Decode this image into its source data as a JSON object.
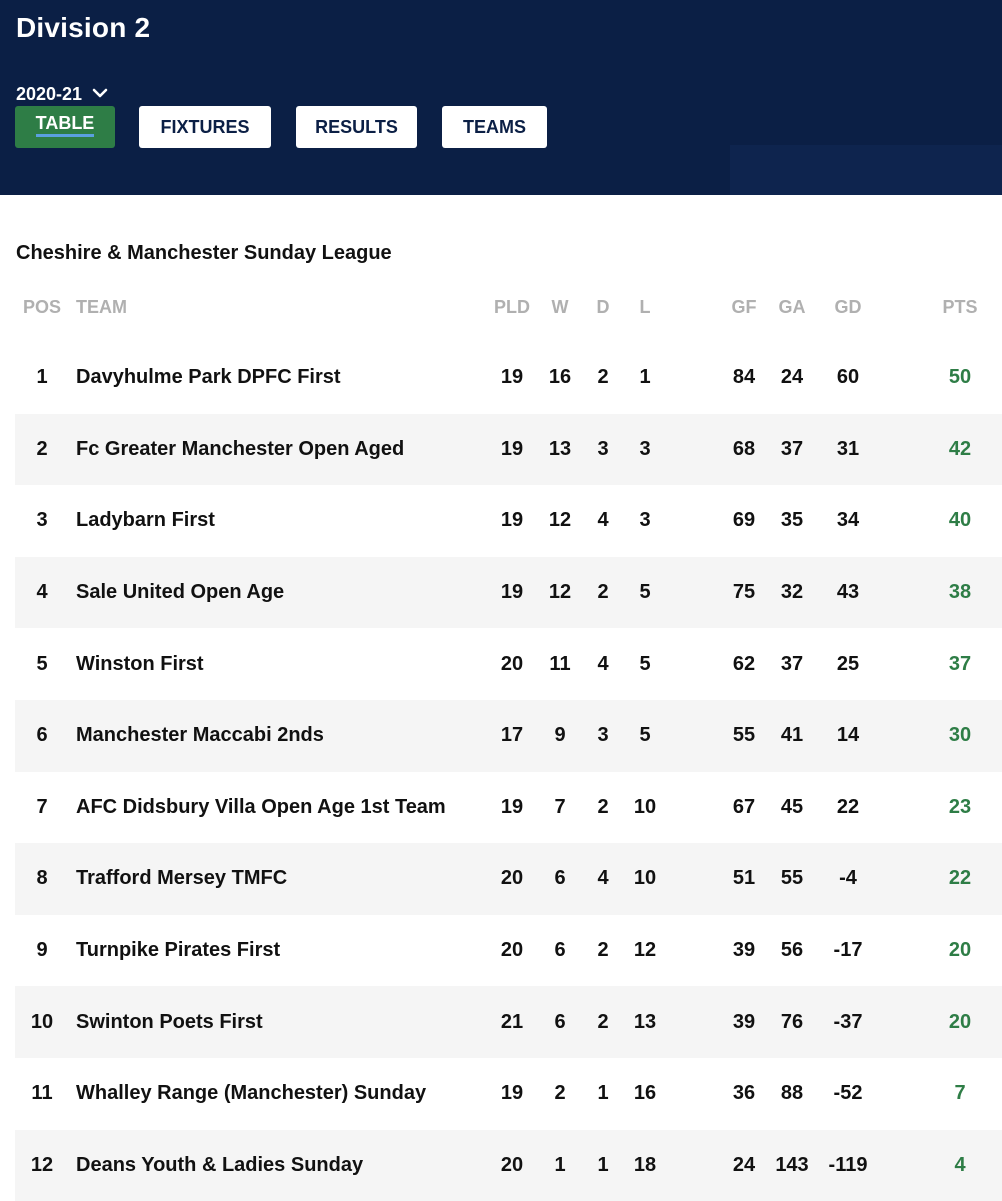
{
  "header": {
    "title": "Division 2",
    "season": "2020-21",
    "tabs": {
      "table": "TABLE",
      "fixtures": "FIXTURES",
      "results": "RESULTS",
      "teams": "TEAMS"
    }
  },
  "league": {
    "name": "Cheshire & Manchester Sunday League"
  },
  "colors": {
    "header_bg": "#0b1f45",
    "active_tab": "#2e7d46",
    "points": "#2e7d46",
    "column_header": "#b0b0b0"
  },
  "table": {
    "columns": {
      "pos": "POS",
      "team": "TEAM",
      "pld": "PLD",
      "w": "W",
      "d": "D",
      "l": "L",
      "gf": "GF",
      "ga": "GA",
      "gd": "GD",
      "pts": "PTS"
    },
    "rows": [
      {
        "pos": "1",
        "team": "Davyhulme Park DPFC First",
        "pld": "19",
        "w": "16",
        "d": "2",
        "l": "1",
        "gf": "84",
        "ga": "24",
        "gd": "60",
        "pts": "50"
      },
      {
        "pos": "2",
        "team": "Fc Greater Manchester Open Aged",
        "pld": "19",
        "w": "13",
        "d": "3",
        "l": "3",
        "gf": "68",
        "ga": "37",
        "gd": "31",
        "pts": "42"
      },
      {
        "pos": "3",
        "team": "Ladybarn First",
        "pld": "19",
        "w": "12",
        "d": "4",
        "l": "3",
        "gf": "69",
        "ga": "35",
        "gd": "34",
        "pts": "40"
      },
      {
        "pos": "4",
        "team": "Sale United Open Age",
        "pld": "19",
        "w": "12",
        "d": "2",
        "l": "5",
        "gf": "75",
        "ga": "32",
        "gd": "43",
        "pts": "38"
      },
      {
        "pos": "5",
        "team": "Winston First",
        "pld": "20",
        "w": "11",
        "d": "4",
        "l": "5",
        "gf": "62",
        "ga": "37",
        "gd": "25",
        "pts": "37"
      },
      {
        "pos": "6",
        "team": "Manchester Maccabi 2nds",
        "pld": "17",
        "w": "9",
        "d": "3",
        "l": "5",
        "gf": "55",
        "ga": "41",
        "gd": "14",
        "pts": "30"
      },
      {
        "pos": "7",
        "team": "AFC Didsbury Villa Open Age 1st Team",
        "pld": "19",
        "w": "7",
        "d": "2",
        "l": "10",
        "gf": "67",
        "ga": "45",
        "gd": "22",
        "pts": "23"
      },
      {
        "pos": "8",
        "team": "Trafford Mersey TMFC",
        "pld": "20",
        "w": "6",
        "d": "4",
        "l": "10",
        "gf": "51",
        "ga": "55",
        "gd": "-4",
        "pts": "22"
      },
      {
        "pos": "9",
        "team": "Turnpike Pirates First",
        "pld": "20",
        "w": "6",
        "d": "2",
        "l": "12",
        "gf": "39",
        "ga": "56",
        "gd": "-17",
        "pts": "20"
      },
      {
        "pos": "10",
        "team": "Swinton Poets First",
        "pld": "21",
        "w": "6",
        "d": "2",
        "l": "13",
        "gf": "39",
        "ga": "76",
        "gd": "-37",
        "pts": "20"
      },
      {
        "pos": "11",
        "team": "Whalley Range (Manchester) Sunday",
        "pld": "19",
        "w": "2",
        "d": "1",
        "l": "16",
        "gf": "36",
        "ga": "88",
        "gd": "-52",
        "pts": "7"
      },
      {
        "pos": "12",
        "team": "Deans Youth & Ladies Sunday",
        "pld": "20",
        "w": "1",
        "d": "1",
        "l": "18",
        "gf": "24",
        "ga": "143",
        "gd": "-119",
        "pts": "4"
      }
    ]
  }
}
